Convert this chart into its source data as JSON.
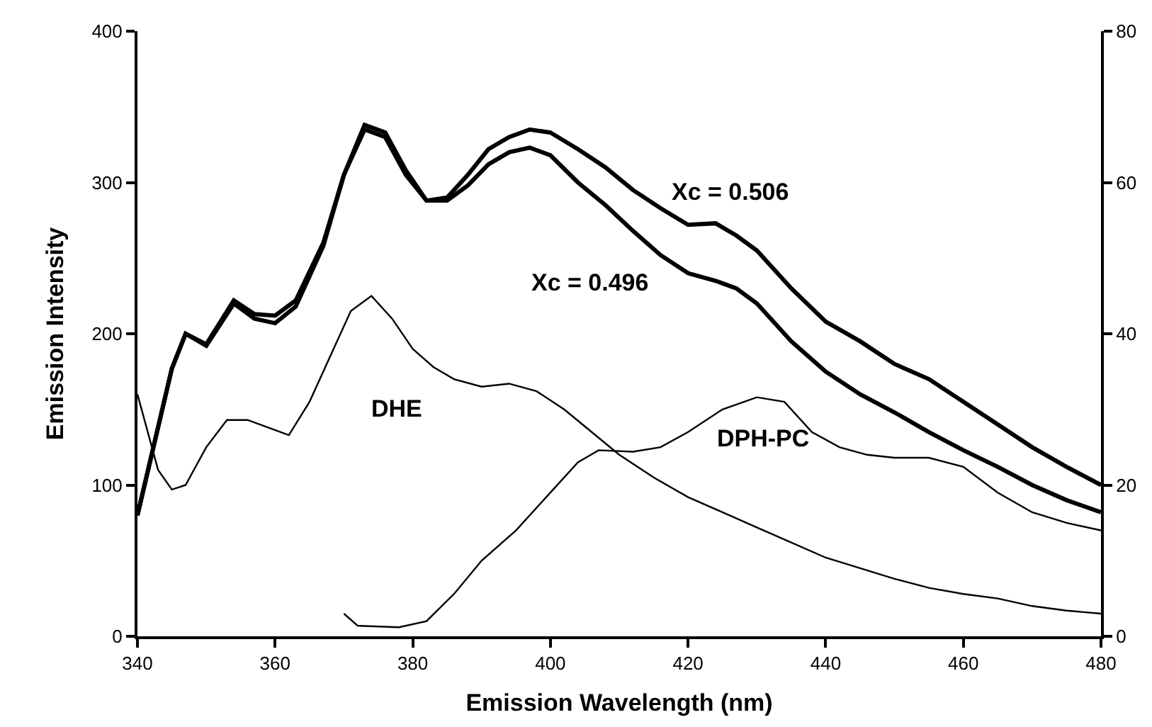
{
  "chart_data": {
    "type": "line",
    "xlabel": "Emission Wavelength (nm)",
    "ylabel": "Emission Intensity",
    "x": [
      340,
      345,
      347,
      350,
      354,
      357,
      360,
      363,
      367,
      370,
      373,
      376,
      379,
      382,
      385,
      388,
      391,
      394,
      397,
      400,
      404,
      408,
      412,
      416,
      420,
      424,
      427,
      430,
      435,
      440,
      445,
      450,
      455,
      460,
      465,
      470,
      475,
      480
    ],
    "series": [
      {
        "name": "Xc = 0.506",
        "color": "#000000",
        "values": [
          80,
          177,
          200,
          193,
          222,
          213,
          212,
          222,
          260,
          305,
          335,
          330,
          305,
          288,
          290,
          305,
          322,
          330,
          335,
          333,
          322,
          310,
          295,
          283,
          272,
          273,
          265,
          255,
          230,
          208,
          195,
          180,
          170,
          155,
          140,
          125,
          112,
          100
        ]
      },
      {
        "name": "Xc = 0.496",
        "color": "#000000",
        "values": [
          80,
          177,
          200,
          192,
          220,
          210,
          207,
          218,
          258,
          305,
          338,
          333,
          308,
          288,
          288,
          298,
          312,
          320,
          323,
          318,
          300,
          285,
          268,
          252,
          240,
          235,
          230,
          220,
          195,
          175,
          160,
          148,
          135,
          123,
          112,
          100,
          90,
          82
        ]
      },
      {
        "name": "DHE",
        "color": "#000000",
        "axis": "y2",
        "x": [
          340,
          343,
          345,
          347,
          350,
          353,
          356,
          359,
          362,
          365,
          368,
          371,
          374,
          377,
          380,
          383,
          386,
          390,
          394,
          398,
          402,
          406,
          410,
          415,
          420,
          425,
          430,
          435,
          440,
          445,
          450,
          455,
          460,
          465,
          470,
          475,
          480
        ],
        "values": [
          32,
          22,
          19.4,
          20,
          25,
          28.6,
          28.6,
          27.6,
          26.6,
          31,
          37,
          43,
          45,
          42,
          38,
          35.6,
          34,
          33,
          33.4,
          32.4,
          30,
          27,
          24,
          21,
          18.4,
          16.4,
          14.4,
          12.4,
          10.4,
          9,
          7.6,
          6.4,
          5.6,
          5,
          4,
          3.4,
          3
        ]
      },
      {
        "name": "DPH-PC",
        "color": "#000000",
        "axis": "y2",
        "x": [
          370,
          372,
          378,
          382,
          386,
          390,
          395,
          400,
          404,
          407,
          412,
          416,
          420,
          425,
          430,
          434,
          438,
          442,
          446,
          450,
          455,
          460,
          465,
          470,
          475,
          480
        ],
        "values": [
          3,
          1.4,
          1.2,
          2,
          5.6,
          10,
          14,
          19,
          23,
          24.6,
          24.4,
          25,
          27,
          30,
          31.6,
          31,
          27,
          25,
          24,
          23.6,
          23.6,
          22.4,
          19,
          16.4,
          15,
          14
        ]
      }
    ],
    "xlim": [
      340,
      480
    ],
    "xticks": [
      340,
      360,
      380,
      400,
      420,
      440,
      460,
      480
    ],
    "ylim": [
      0,
      400
    ],
    "yticks": [
      0,
      100,
      200,
      300,
      400
    ],
    "y2lim": [
      0,
      80
    ],
    "y2ticks": [
      0,
      20,
      40,
      60,
      80
    ],
    "grid": false,
    "legend": false,
    "marker": "none",
    "line_style": "solid"
  }
}
